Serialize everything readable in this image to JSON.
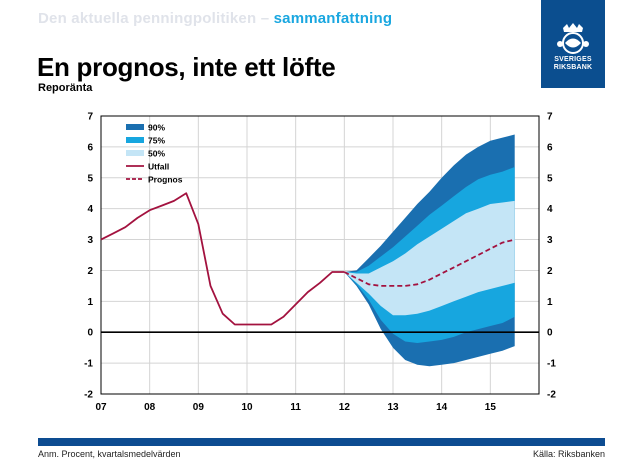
{
  "header": {
    "section_gray": "Den aktuella penningpolitiken – ",
    "section_blue": "sammanfattning",
    "title": "En prognos, inte ett löfte",
    "subtitle": "Reporänta"
  },
  "logo": {
    "line1": "SVERIGES",
    "line2": "RIKSBANK"
  },
  "footer": {
    "note": "Anm. Procent, kvartalsmedelvärden",
    "source": "Källa: Riksbanken"
  },
  "colors": {
    "band90": "#1a6fb0",
    "band75": "#17a6df",
    "band50": "#c4e5f6",
    "outcome": "#a3123f",
    "forecast": "#a3123f",
    "bar": "#0d4c91"
  },
  "chart_data": {
    "type": "area",
    "x_ticks": [
      "07",
      "08",
      "09",
      "10",
      "11",
      "12",
      "13",
      "14",
      "15"
    ],
    "y_ticks": [
      "-2",
      "-1",
      "0",
      "1",
      "2",
      "3",
      "4",
      "5",
      "6",
      "7"
    ],
    "xlim": [
      2007,
      2016
    ],
    "ylim": [
      -2,
      7
    ],
    "grid": true,
    "legend_position": "top-left",
    "legend": [
      "90%",
      "75%",
      "50%",
      "Utfall",
      "Prognos"
    ],
    "series": [
      {
        "name": "Utfall",
        "style": "solid",
        "points": [
          [
            2007.0,
            3.0
          ],
          [
            2007.25,
            3.2
          ],
          [
            2007.5,
            3.4
          ],
          [
            2007.75,
            3.7
          ],
          [
            2008.0,
            3.95
          ],
          [
            2008.25,
            4.1
          ],
          [
            2008.5,
            4.25
          ],
          [
            2008.75,
            4.5
          ],
          [
            2009.0,
            3.5
          ],
          [
            2009.25,
            1.5
          ],
          [
            2009.5,
            0.6
          ],
          [
            2009.75,
            0.25
          ],
          [
            2010.0,
            0.25
          ],
          [
            2010.25,
            0.25
          ],
          [
            2010.5,
            0.25
          ],
          [
            2010.75,
            0.5
          ],
          [
            2011.0,
            0.9
          ],
          [
            2011.25,
            1.3
          ],
          [
            2011.5,
            1.6
          ],
          [
            2011.75,
            1.95
          ],
          [
            2012.0,
            1.95
          ]
        ]
      },
      {
        "name": "Prognos",
        "style": "dashed",
        "points": [
          [
            2012.0,
            1.95
          ],
          [
            2012.25,
            1.75
          ],
          [
            2012.5,
            1.55
          ],
          [
            2012.75,
            1.5
          ],
          [
            2013.0,
            1.5
          ],
          [
            2013.25,
            1.5
          ],
          [
            2013.5,
            1.55
          ],
          [
            2013.75,
            1.7
          ],
          [
            2014.0,
            1.9
          ],
          [
            2014.25,
            2.1
          ],
          [
            2014.5,
            2.3
          ],
          [
            2014.75,
            2.5
          ],
          [
            2015.0,
            2.7
          ],
          [
            2015.25,
            2.9
          ],
          [
            2015.5,
            3.0
          ]
        ]
      }
    ],
    "bands": [
      {
        "name": "90%",
        "x": [
          2012.0,
          2012.25,
          2012.5,
          2012.75,
          2013.0,
          2013.25,
          2013.5,
          2013.75,
          2014.0,
          2014.25,
          2014.5,
          2014.75,
          2015.0,
          2015.25,
          2015.5
        ],
        "upper": [
          1.95,
          2.0,
          2.4,
          2.8,
          3.25,
          3.7,
          4.15,
          4.55,
          5.0,
          5.4,
          5.75,
          6.0,
          6.2,
          6.3,
          6.4
        ],
        "lower": [
          1.95,
          1.5,
          0.9,
          0.1,
          -0.5,
          -0.9,
          -1.05,
          -1.1,
          -1.05,
          -1.0,
          -0.9,
          -0.8,
          -0.7,
          -0.6,
          -0.45
        ]
      },
      {
        "name": "75%",
        "x": [
          2012.0,
          2012.25,
          2012.5,
          2012.75,
          2013.0,
          2013.25,
          2013.5,
          2013.75,
          2014.0,
          2014.25,
          2014.5,
          2014.75,
          2015.0,
          2015.25,
          2015.5
        ],
        "upper": [
          1.95,
          1.95,
          2.15,
          2.45,
          2.75,
          3.1,
          3.45,
          3.8,
          4.1,
          4.4,
          4.7,
          4.95,
          5.1,
          5.2,
          5.35
        ],
        "lower": [
          1.95,
          1.55,
          1.05,
          0.4,
          -0.05,
          -0.3,
          -0.35,
          -0.3,
          -0.25,
          -0.15,
          0.0,
          0.1,
          0.2,
          0.3,
          0.5
        ]
      },
      {
        "name": "50%",
        "x": [
          2012.0,
          2012.25,
          2012.5,
          2012.75,
          2013.0,
          2013.25,
          2013.5,
          2013.75,
          2014.0,
          2014.25,
          2014.5,
          2014.75,
          2015.0,
          2015.25,
          2015.5
        ],
        "upper": [
          1.95,
          1.9,
          1.9,
          2.1,
          2.3,
          2.55,
          2.85,
          3.1,
          3.35,
          3.6,
          3.85,
          4.0,
          4.15,
          4.2,
          4.25
        ],
        "lower": [
          1.95,
          1.6,
          1.25,
          0.85,
          0.55,
          0.55,
          0.6,
          0.7,
          0.85,
          1.0,
          1.15,
          1.3,
          1.4,
          1.5,
          1.6
        ]
      }
    ]
  }
}
